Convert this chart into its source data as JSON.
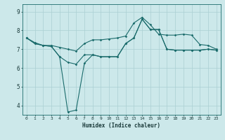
{
  "title": "",
  "xlabel": "Humidex (Indice chaleur)",
  "bg_color": "#cce8ea",
  "line_color": "#1a6b6b",
  "grid_color": "#aacfd2",
  "x_ticks": [
    0,
    1,
    2,
    3,
    4,
    5,
    6,
    7,
    8,
    9,
    10,
    11,
    12,
    13,
    14,
    15,
    16,
    17,
    18,
    19,
    20,
    21,
    22,
    23
  ],
  "y_ticks": [
    4,
    5,
    6,
    7,
    8,
    9
  ],
  "ylim": [
    3.5,
    9.4
  ],
  "xlim": [
    -0.5,
    23.5
  ],
  "line1_x": [
    0,
    1,
    2,
    3,
    4,
    5,
    6,
    7,
    8,
    9,
    10,
    11,
    12,
    13,
    14,
    15,
    16,
    17,
    18,
    19,
    20,
    21,
    22,
    23
  ],
  "line1_y": [
    7.6,
    7.3,
    7.2,
    7.15,
    6.6,
    6.3,
    6.2,
    6.7,
    6.7,
    6.6,
    6.6,
    6.6,
    7.3,
    7.6,
    8.6,
    8.05,
    8.05,
    7.0,
    6.95,
    6.95,
    6.95,
    6.95,
    7.0,
    6.95
  ],
  "line2_x": [
    0,
    1,
    2,
    3,
    4,
    5,
    6,
    7,
    8,
    9,
    10,
    11,
    12,
    13,
    14,
    15,
    16,
    17,
    18,
    19,
    20,
    21,
    22,
    23
  ],
  "line2_y": [
    7.6,
    7.3,
    7.2,
    7.15,
    6.6,
    3.65,
    3.75,
    6.25,
    6.7,
    6.6,
    6.6,
    6.6,
    7.3,
    7.6,
    8.6,
    8.05,
    8.05,
    7.0,
    6.95,
    6.95,
    6.95,
    6.95,
    7.0,
    6.95
  ],
  "line3_x": [
    0,
    1,
    2,
    3,
    4,
    5,
    6,
    7,
    8,
    9,
    10,
    11,
    12,
    13,
    14,
    15,
    16,
    17,
    18,
    19,
    20,
    21,
    22,
    23
  ],
  "line3_y": [
    7.6,
    7.35,
    7.2,
    7.2,
    7.1,
    7.0,
    6.9,
    7.3,
    7.5,
    7.5,
    7.55,
    7.6,
    7.7,
    8.4,
    8.7,
    8.3,
    7.8,
    7.75,
    7.75,
    7.8,
    7.75,
    7.25,
    7.2,
    7.0
  ]
}
